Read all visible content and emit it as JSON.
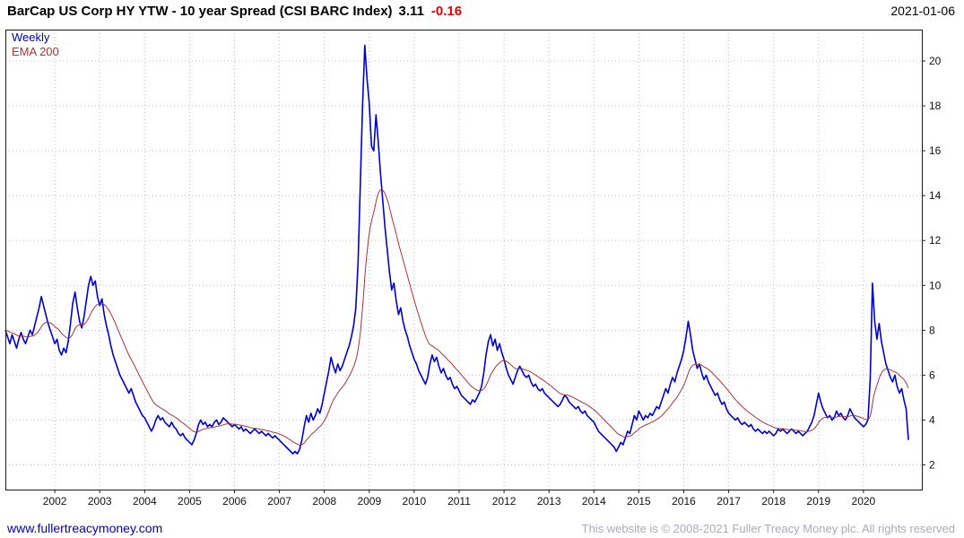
{
  "header": {
    "title_main": "BarCap US Corp HY YTW - 10 year Spread (CSI BARC Index)",
    "last_value": "3.11",
    "change": "-0.16",
    "date": "2021-01-06"
  },
  "footer": {
    "link_text": "www.fullertreacymoney.com",
    "copyright": "This website is © 2008-2021 Fuller Treacy Money plc. All rights reserved"
  },
  "colors": {
    "weekly_line": "#0000cc",
    "ema_line": "#aa3333",
    "negative_change": "#e60000",
    "link": "#0000bf",
    "copyright_text": "#a6abbd",
    "grid": "#b9bdc6"
  },
  "chart_data": {
    "type": "line",
    "title": "BarCap US Corp HY YTW - 10 year Spread (CSI BARC Index)",
    "xlabel": "",
    "ylabel": "",
    "grid": true,
    "x_axis": {
      "min": 2000.9,
      "max": 2021.3,
      "ticks": [
        2002,
        2003,
        2004,
        2005,
        2006,
        2007,
        2008,
        2009,
        2010,
        2011,
        2012,
        2013,
        2014,
        2015,
        2016,
        2017,
        2018,
        2019,
        2020
      ]
    },
    "y_axis": {
      "min": 0.9,
      "max": 21.4,
      "ticks": [
        2,
        4,
        6,
        8,
        10,
        12,
        14,
        16,
        18,
        20
      ]
    },
    "legend": {
      "position": "top-left",
      "entries": [
        {
          "label": "Weekly",
          "color": "#0000cc"
        },
        {
          "label": "EMA 200",
          "color": "#aa3333"
        }
      ]
    },
    "series": [
      {
        "name": "Weekly",
        "color": "#0000cc",
        "x_start": 2000.9,
        "x_step": 0.05,
        "values": [
          8.0,
          7.7,
          7.4,
          7.8,
          7.5,
          7.2,
          7.6,
          7.9,
          7.6,
          7.4,
          7.7,
          8.0,
          7.8,
          8.2,
          8.6,
          9.0,
          9.5,
          9.1,
          8.7,
          8.3,
          8.0,
          7.7,
          7.4,
          7.6,
          7.1,
          6.9,
          7.2,
          7.0,
          7.5,
          8.3,
          9.2,
          9.7,
          9.0,
          8.4,
          8.1,
          8.6,
          9.3,
          10.0,
          10.4,
          10.0,
          10.2,
          9.5,
          9.1,
          9.4,
          8.7,
          8.2,
          7.8,
          7.3,
          6.9,
          6.6,
          6.3,
          6.0,
          5.8,
          5.6,
          5.4,
          5.2,
          5.4,
          5.1,
          4.8,
          4.6,
          4.4,
          4.2,
          4.1,
          3.9,
          3.7,
          3.5,
          3.7,
          4.0,
          4.2,
          4.0,
          4.1,
          3.9,
          3.8,
          3.7,
          3.9,
          3.7,
          3.6,
          3.4,
          3.3,
          3.4,
          3.2,
          3.1,
          3.0,
          2.9,
          3.1,
          3.4,
          3.8,
          4.0,
          3.8,
          3.9,
          3.7,
          3.8,
          3.7,
          3.9,
          4.0,
          3.8,
          3.9,
          4.1,
          4.0,
          3.9,
          3.8,
          3.7,
          3.8,
          3.7,
          3.6,
          3.7,
          3.5,
          3.6,
          3.5,
          3.4,
          3.5,
          3.6,
          3.5,
          3.4,
          3.5,
          3.4,
          3.3,
          3.4,
          3.3,
          3.2,
          3.3,
          3.2,
          3.1,
          3.0,
          2.9,
          2.8,
          2.7,
          2.6,
          2.5,
          2.6,
          2.5,
          2.7,
          3.1,
          3.7,
          4.2,
          3.9,
          4.3,
          4.0,
          4.2,
          4.5,
          4.3,
          4.7,
          5.2,
          5.7,
          6.2,
          6.8,
          6.4,
          6.1,
          6.5,
          6.2,
          6.4,
          6.7,
          7.0,
          7.3,
          7.7,
          8.2,
          9.0,
          11.0,
          14.5,
          18.0,
          20.7,
          19.2,
          18.1,
          16.2,
          16.0,
          17.6,
          16.4,
          15.0,
          13.8,
          12.6,
          11.6,
          10.6,
          9.8,
          10.1,
          9.3,
          8.7,
          9.0,
          8.4,
          8.0,
          7.7,
          7.3,
          7.0,
          6.7,
          6.5,
          6.2,
          6.0,
          5.8,
          5.6,
          5.9,
          6.5,
          6.9,
          6.6,
          6.8,
          6.4,
          6.1,
          6.3,
          6.0,
          5.8,
          5.9,
          5.6,
          5.4,
          5.5,
          5.3,
          5.1,
          5.0,
          4.9,
          4.8,
          4.7,
          4.9,
          4.8,
          5.0,
          5.2,
          5.5,
          6.1,
          6.9,
          7.5,
          7.8,
          7.3,
          7.6,
          7.1,
          7.4,
          7.0,
          6.7,
          6.3,
          6.0,
          5.8,
          5.6,
          5.9,
          6.2,
          6.4,
          6.2,
          6.0,
          5.9,
          6.0,
          5.7,
          5.5,
          5.6,
          5.4,
          5.3,
          5.4,
          5.2,
          5.1,
          5.0,
          4.9,
          4.8,
          4.7,
          4.6,
          4.7,
          4.9,
          5.1,
          5.0,
          4.8,
          4.7,
          4.6,
          4.5,
          4.6,
          4.4,
          4.3,
          4.4,
          4.2,
          4.1,
          4.0,
          3.9,
          3.7,
          3.5,
          3.4,
          3.3,
          3.2,
          3.1,
          3.0,
          2.9,
          2.8,
          2.6,
          2.8,
          3.0,
          2.9,
          3.2,
          3.5,
          3.4,
          3.8,
          4.2,
          4.0,
          4.4,
          4.2,
          4.0,
          4.2,
          4.1,
          4.3,
          4.2,
          4.4,
          4.6,
          4.5,
          4.8,
          5.1,
          5.4,
          5.2,
          5.6,
          5.9,
          5.7,
          6.1,
          6.4,
          6.7,
          7.1,
          7.7,
          8.4,
          7.8,
          7.1,
          6.7,
          6.3,
          6.5,
          6.1,
          5.8,
          6.0,
          5.7,
          5.5,
          5.3,
          5.1,
          5.2,
          4.9,
          4.7,
          4.8,
          4.5,
          4.3,
          4.2,
          4.1,
          4.0,
          4.1,
          3.9,
          3.8,
          3.9,
          3.8,
          3.7,
          3.8,
          3.6,
          3.5,
          3.6,
          3.5,
          3.4,
          3.5,
          3.4,
          3.5,
          3.4,
          3.3,
          3.4,
          3.6,
          3.5,
          3.6,
          3.5,
          3.4,
          3.5,
          3.6,
          3.5,
          3.4,
          3.5,
          3.4,
          3.3,
          3.4,
          3.5,
          3.7,
          3.9,
          4.2,
          4.7,
          5.2,
          4.8,
          4.5,
          4.3,
          4.1,
          4.2,
          4.0,
          4.1,
          4.4,
          4.2,
          4.3,
          4.1,
          4.0,
          4.2,
          4.5,
          4.3,
          4.1,
          4.0,
          3.9,
          3.8,
          3.7,
          3.8,
          4.0,
          5.8,
          10.1,
          8.4,
          7.6,
          8.3,
          7.5,
          7.0,
          6.5,
          6.2,
          5.9,
          5.7,
          6.0,
          5.5,
          5.2,
          5.4,
          4.9,
          4.5,
          3.11
        ]
      },
      {
        "name": "EMA 200",
        "color": "#aa3333",
        "derived_from": "Weekly",
        "method": "ema",
        "period_days": 200
      }
    ]
  }
}
